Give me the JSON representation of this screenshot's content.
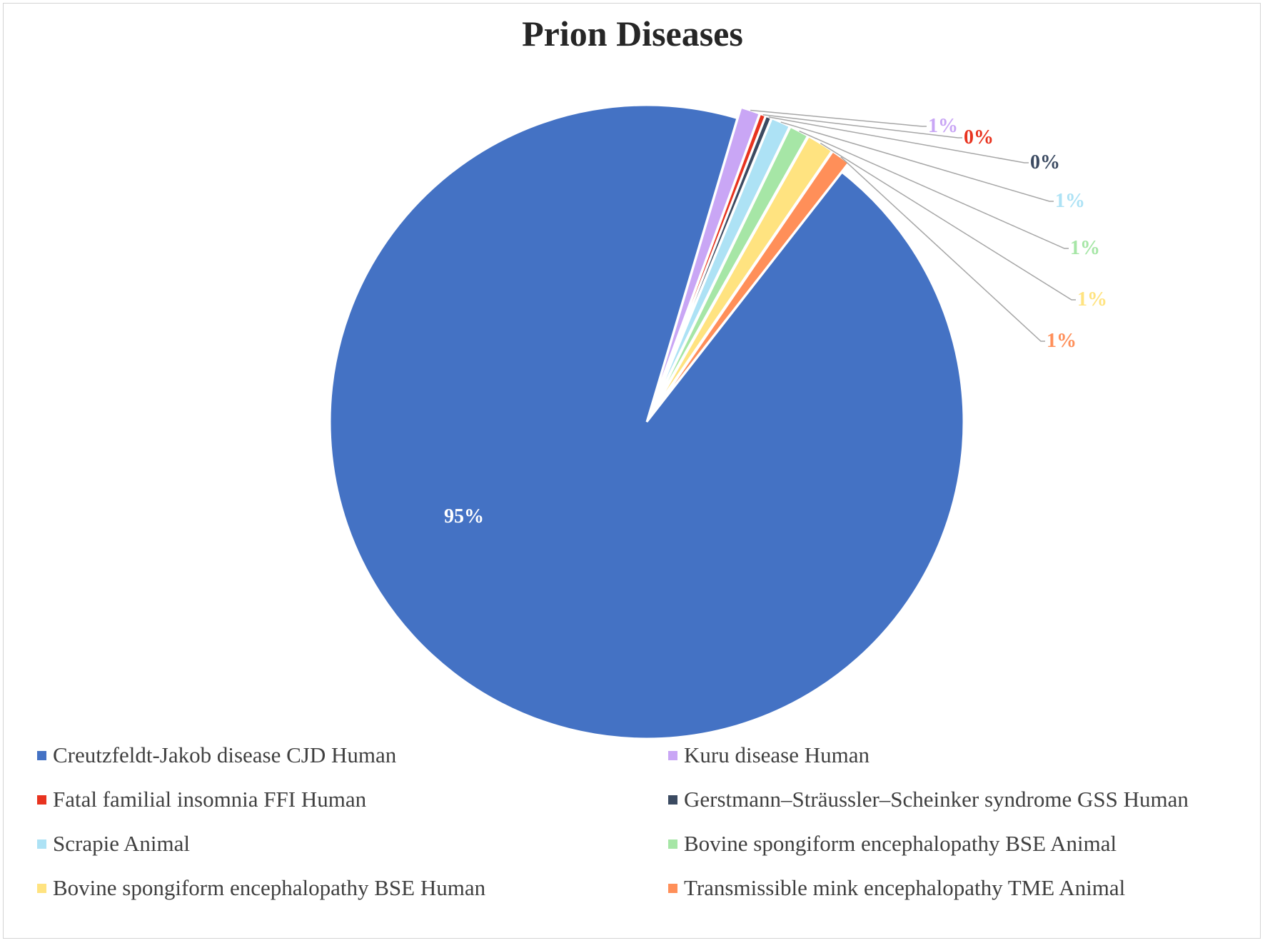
{
  "chart_data": {
    "type": "pie",
    "title": "Prion Diseases",
    "legend_position": "bottom",
    "slices": [
      {
        "name": "Creutzfeldt-Jakob disease CJD Human",
        "value": 95,
        "label": "95%",
        "color": "#4472C4"
      },
      {
        "name": "Kuru disease Human",
        "value": 1,
        "label": "1%",
        "color": "#C9A6F5"
      },
      {
        "name": "Fatal familial insomnia FFI Human",
        "value": 0.3,
        "label": "0%",
        "color": "#E8331F"
      },
      {
        "name": "Gerstmann–Sträussler–Scheinker syndrome GSS Human",
        "value": 0.3,
        "label": "0%",
        "color": "#3B4A61"
      },
      {
        "name": "Scrapie Animal",
        "value": 1,
        "label": "1%",
        "color": "#ADE2F5"
      },
      {
        "name": "Bovine spongiform encephalopathy BSE Animal",
        "value": 1,
        "label": "1%",
        "color": "#A6E6A6"
      },
      {
        "name": "Bovine spongiform encephalopathy BSE Human",
        "value": 1.4,
        "label": "1%",
        "color": "#FFE380"
      },
      {
        "name": "Transmissible mink encephalopathy TME Animal",
        "value": 1,
        "label": "1%",
        "color": "#FF8F59"
      }
    ]
  }
}
